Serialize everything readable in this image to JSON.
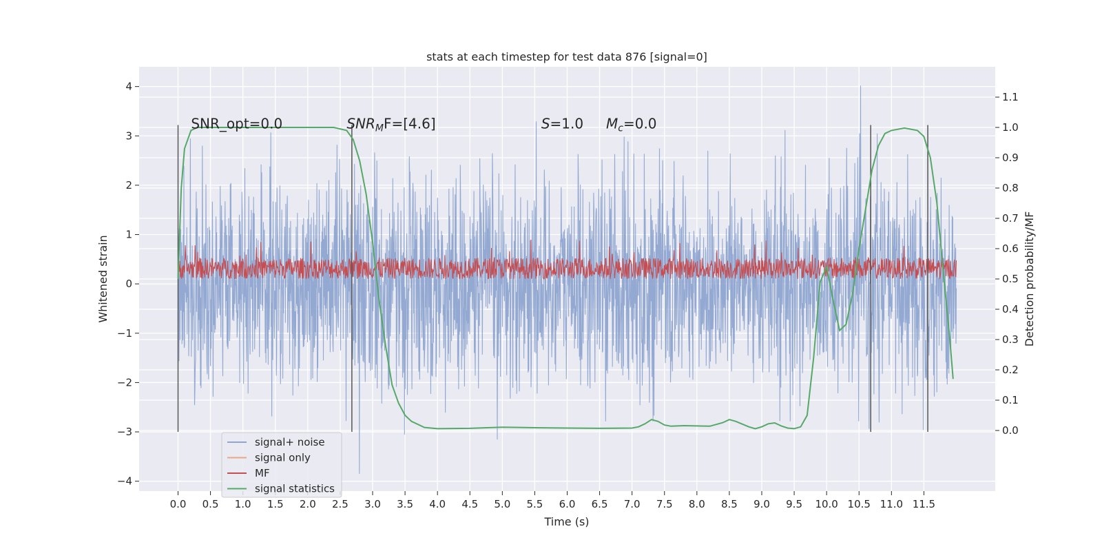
{
  "chart_data": {
    "type": "line",
    "title": "stats at each timestep for test data 876 [signal=0]",
    "xlabel": "Time (s)",
    "ylabel_left": "Whitened strain",
    "ylabel_right": "Detection probability/MF",
    "xlim": [
      -0.6,
      12.6
    ],
    "ylim_left": [
      -4.2,
      4.4
    ],
    "ylim_right": [
      -0.2,
      1.2
    ],
    "x_ticks": [
      0.0,
      0.5,
      1.0,
      1.5,
      2.0,
      2.5,
      3.0,
      3.5,
      4.0,
      4.5,
      5.0,
      5.5,
      6.0,
      6.5,
      7.0,
      7.5,
      8.0,
      8.5,
      9.0,
      9.5,
      10.0,
      10.5,
      11.0,
      11.5
    ],
    "x_tick_labels": [
      "0.0",
      "0.5",
      "1.0",
      "1.5",
      "2.0",
      "2.5",
      "3.0",
      "3.5",
      "4.0",
      "4.5",
      "5.0",
      "5.5",
      "6.0",
      "6.5",
      "7.0",
      "7.5",
      "8.0",
      "8.5",
      "9.0",
      "9.5",
      "10.0",
      "10.5",
      "11.0",
      "11.5"
    ],
    "y_ticks_left": [
      4,
      3,
      2,
      1,
      0,
      -1,
      -2,
      -3,
      -4
    ],
    "y_tick_labels_left": [
      "4",
      "3",
      "2",
      "1",
      "0",
      "−1",
      "−2",
      "−3",
      "−4"
    ],
    "y_ticks_right": [
      1.1,
      1.0,
      0.9,
      0.8,
      0.7,
      0.6,
      0.5,
      0.4,
      0.3,
      0.2,
      0.1,
      0.0
    ],
    "y_tick_labels_right": [
      "1.1",
      "1.0",
      "0.9",
      "0.8",
      "0.7",
      "0.6",
      "0.5",
      "0.4",
      "0.3",
      "0.2",
      "0.1",
      "0.0"
    ],
    "grid": true,
    "legend_position": "lower-left",
    "series": [
      {
        "name": "signal+ noise",
        "axis": "left",
        "color": "#8ea5d0",
        "x_range": [
          0.0,
          12.0
        ],
        "typical_range": [
          -2.0,
          2.0
        ],
        "max": 4.1,
        "min": -3.85,
        "description_values": "dense noise band"
      },
      {
        "name": "signal only",
        "axis": "left",
        "color": "#e8a886",
        "values": []
      },
      {
        "name": "MF",
        "axis": "right",
        "color": "#c44e52",
        "x_range": [
          0.0,
          12.0
        ],
        "typical_range": [
          0.5,
          0.57
        ],
        "max": 0.63
      },
      {
        "name": "signal statistics",
        "axis": "right",
        "color": "#55a868",
        "x": [
          0.0,
          0.05,
          0.1,
          0.15,
          0.2,
          0.3,
          0.5,
          1.0,
          2.0,
          2.4,
          2.6,
          2.7,
          2.8,
          2.9,
          3.0,
          3.1,
          3.2,
          3.3,
          3.4,
          3.5,
          3.6,
          3.8,
          4.0,
          4.5,
          5.0,
          5.5,
          6.0,
          6.5,
          7.0,
          7.1,
          7.2,
          7.3,
          7.4,
          7.5,
          7.6,
          7.8,
          8.0,
          8.2,
          8.4,
          8.5,
          8.6,
          8.8,
          8.9,
          9.0,
          9.1,
          9.2,
          9.3,
          9.4,
          9.5,
          9.6,
          9.7,
          9.8,
          9.9,
          10.0,
          10.1,
          10.2,
          10.3,
          10.4,
          10.5,
          10.6,
          10.7,
          10.8,
          10.9,
          11.0,
          11.2,
          11.4,
          11.5,
          11.6,
          11.7,
          11.8,
          11.9,
          11.95
        ],
        "y": [
          0.5,
          0.8,
          0.93,
          0.96,
          0.99,
          1.0,
          1.0,
          1.0,
          1.0,
          1.0,
          0.99,
          0.96,
          0.89,
          0.78,
          0.62,
          0.43,
          0.28,
          0.15,
          0.09,
          0.05,
          0.03,
          0.01,
          0.006,
          0.007,
          0.011,
          0.009,
          0.008,
          0.007,
          0.008,
          0.012,
          0.022,
          0.036,
          0.03,
          0.018,
          0.014,
          0.016,
          0.015,
          0.014,
          0.026,
          0.036,
          0.03,
          0.012,
          0.006,
          0.012,
          0.022,
          0.025,
          0.015,
          0.008,
          0.006,
          0.012,
          0.05,
          0.24,
          0.49,
          0.54,
          0.43,
          0.33,
          0.35,
          0.45,
          0.6,
          0.73,
          0.86,
          0.94,
          0.98,
          0.99,
          0.998,
          0.99,
          0.97,
          0.9,
          0.75,
          0.52,
          0.3,
          0.17
        ]
      }
    ],
    "vertical_lines": [
      {
        "x": 0.0,
        "y_top": 3.22,
        "y_bottom": -3.0
      },
      {
        "x": 2.68,
        "y_top": 3.22,
        "y_bottom": -3.0
      },
      {
        "x": 10.68,
        "y_top": 3.22,
        "y_bottom": -3.0
      },
      {
        "x": 11.56,
        "y_top": 3.22,
        "y_bottom": -3.0
      }
    ],
    "annotations": [
      {
        "x": 0.2,
        "y": 3.15,
        "text": "SNR_opt=0.0"
      },
      {
        "x": 2.6,
        "y": 3.15,
        "text": "SNR_MF=[4.6]",
        "main": "SNR",
        "sub": "M",
        "rest": "F=[4.6]"
      },
      {
        "x": 5.6,
        "y": 3.15,
        "text": "S=1.0",
        "main": "S",
        "rest": "=1.0"
      },
      {
        "x": 6.6,
        "y": 3.15,
        "text": "M_c=0.0",
        "main": "M",
        "sub": "c",
        "rest": "=0.0"
      }
    ]
  }
}
